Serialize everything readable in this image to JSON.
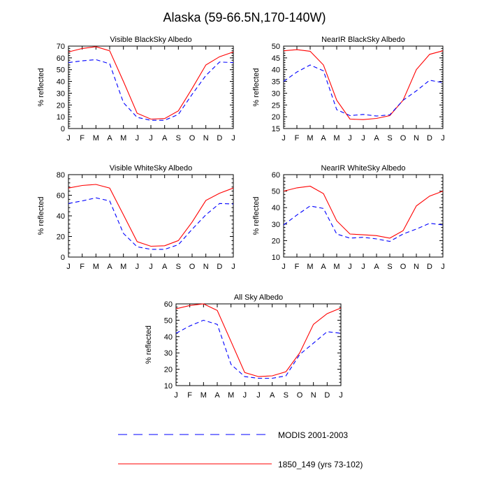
{
  "figure": {
    "title": "Alaska (59-66.5N,170-140W)"
  },
  "legend": {
    "items": [
      {
        "label": "MODIS 2001-2003",
        "color": "#0000ff",
        "style": "dashed"
      },
      {
        "label": "1850_149 (yrs 73-102)",
        "color": "#ff0000",
        "style": "solid"
      }
    ]
  },
  "chart_data": [
    {
      "type": "line",
      "title": "Visible BlackSky Albedo",
      "ylabel": "% reflected",
      "xlabel": "",
      "x": [
        "J",
        "F",
        "M",
        "A",
        "M",
        "J",
        "J",
        "A",
        "S",
        "O",
        "N",
        "D",
        "J"
      ],
      "ylim": [
        0,
        70
      ],
      "yticks": [
        0,
        10,
        20,
        30,
        40,
        50,
        60,
        70
      ],
      "series": [
        {
          "name": "1850_149 (yrs 73-102)",
          "color": "#ff0000",
          "style": "solid",
          "values": [
            65,
            68,
            69.5,
            66,
            40,
            13,
            8,
            8.5,
            15,
            34,
            54,
            61,
            65
          ]
        },
        {
          "name": "MODIS 2001-2003",
          "color": "#0000ff",
          "style": "dashed",
          "values": [
            56,
            57.5,
            58.5,
            55,
            22,
            9.5,
            7,
            7,
            12,
            29,
            45,
            56.5,
            56
          ]
        }
      ]
    },
    {
      "type": "line",
      "title": "NearIR BlackSky Albedo",
      "ylabel": "% reflected",
      "xlabel": "",
      "x": [
        "J",
        "F",
        "M",
        "A",
        "M",
        "J",
        "J",
        "A",
        "S",
        "O",
        "N",
        "D",
        "J"
      ],
      "ylim": [
        15,
        50
      ],
      "yticks": [
        15,
        20,
        25,
        30,
        35,
        40,
        45,
        50
      ],
      "series": [
        {
          "name": "1850_149 (yrs 73-102)",
          "color": "#ff0000",
          "style": "solid",
          "values": [
            48,
            48.5,
            47.8,
            42,
            27,
            19,
            18.8,
            19.3,
            20.5,
            27,
            40,
            46.5,
            48
          ]
        },
        {
          "name": "MODIS 2001-2003",
          "color": "#0000ff",
          "style": "dashed",
          "values": [
            35,
            39,
            42,
            39.5,
            23,
            20.5,
            21,
            20.3,
            20.8,
            27,
            31,
            35.5,
            34.5
          ]
        }
      ]
    },
    {
      "type": "line",
      "title": "Visible WhiteSky Albedo",
      "ylabel": "% reflected",
      "xlabel": "",
      "x": [
        "J",
        "F",
        "M",
        "A",
        "M",
        "J",
        "J",
        "A",
        "S",
        "O",
        "N",
        "D",
        "J"
      ],
      "ylim": [
        0,
        80
      ],
      "yticks": [
        0,
        20,
        40,
        60,
        80
      ],
      "series": [
        {
          "name": "1850_149 (yrs 73-102)",
          "color": "#ff0000",
          "style": "solid",
          "values": [
            67,
            69.5,
            70.5,
            67,
            41,
            15,
            10.5,
            11,
            16,
            34,
            55,
            62,
            67
          ]
        },
        {
          "name": "MODIS 2001-2003",
          "color": "#0000ff",
          "style": "dashed",
          "values": [
            52,
            54.5,
            57.5,
            54.5,
            23,
            10,
            7.5,
            7.5,
            12,
            27,
            41,
            52,
            51.5
          ]
        }
      ]
    },
    {
      "type": "line",
      "title": "NearIR WhiteSky Albedo",
      "ylabel": "% reflected",
      "xlabel": "",
      "x": [
        "J",
        "F",
        "M",
        "A",
        "M",
        "J",
        "J",
        "A",
        "S",
        "O",
        "N",
        "D",
        "J"
      ],
      "ylim": [
        10,
        60
      ],
      "yticks": [
        10,
        20,
        30,
        40,
        50,
        60
      ],
      "series": [
        {
          "name": "1850_149 (yrs 73-102)",
          "color": "#ff0000",
          "style": "solid",
          "values": [
            50,
            52,
            53,
            48.5,
            32,
            24,
            23.5,
            23,
            21.5,
            26,
            41,
            47,
            50
          ]
        },
        {
          "name": "MODIS 2001-2003",
          "color": "#0000ff",
          "style": "dashed",
          "values": [
            29.5,
            35.5,
            41,
            39.5,
            24,
            21.5,
            22,
            21,
            19.5,
            24,
            27,
            30.5,
            29.5
          ]
        }
      ]
    },
    {
      "type": "line",
      "title": "All Sky Albedo",
      "ylabel": "% reflected",
      "xlabel": "",
      "x": [
        "J",
        "F",
        "M",
        "A",
        "M",
        "J",
        "J",
        "A",
        "S",
        "O",
        "N",
        "D",
        "J"
      ],
      "ylim": [
        10,
        60
      ],
      "yticks": [
        10,
        20,
        30,
        40,
        50,
        60
      ],
      "series": [
        {
          "name": "1850_149 (yrs 73-102)",
          "color": "#ff0000",
          "style": "solid",
          "values": [
            57,
            59,
            60,
            56,
            37,
            18,
            15.5,
            16,
            18.5,
            30,
            47.5,
            54,
            57.5
          ]
        },
        {
          "name": "MODIS 2001-2003",
          "color": "#0000ff",
          "style": "dashed",
          "values": [
            42,
            46.5,
            50,
            47.5,
            23,
            15.5,
            14.5,
            14.5,
            16,
            29,
            36,
            43,
            42
          ]
        }
      ]
    }
  ]
}
